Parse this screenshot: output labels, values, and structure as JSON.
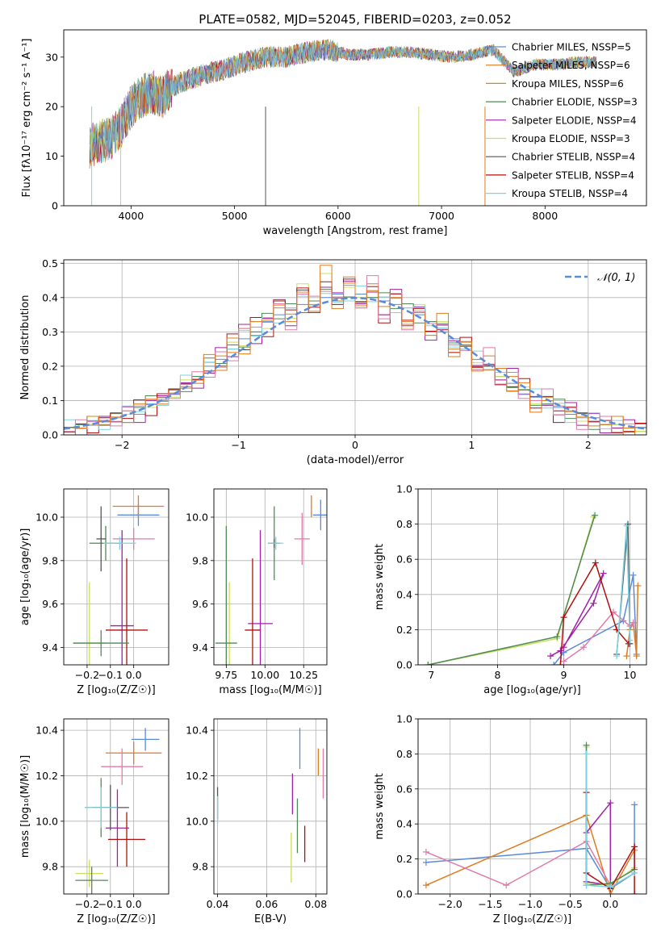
{
  "colors": {
    "chabrier_miles": "#5b8bd8",
    "salpeter_miles": "#e07b1e",
    "kroupa_miles": "#c98a2a",
    "chabrier_elodie": "#4f8a55",
    "salpeter_elodie": "#a020a8",
    "kroupa_elodie": "#c8e05a",
    "chabrier_stelib": "#555555",
    "salpeter_stelib": "#b01010",
    "kroupa_stelib": "#7fd3e0",
    "pink": "#e07aaa"
  },
  "chart_data": [
    {
      "id": "spectrum",
      "type": "line",
      "title": "PLATE=0582, MJD=52045, FIBERID=0203, z=0.052",
      "xlabel": "wavelength [Angstrom, rest frame]",
      "ylabel": "Flux [fλ10⁻¹⁷ erg cm⁻² s⁻¹ A⁻¹]",
      "xlim": [
        3350,
        8980
      ],
      "ylim": [
        0,
        35.5
      ],
      "xticks": [
        4000,
        5000,
        6000,
        7000,
        8000
      ],
      "yticks": [
        0,
        10,
        20,
        30
      ],
      "grid": false,
      "legend_position": "top-right",
      "legend": [
        "Chabrier MILES, N_SSP=5",
        "Salpeter MILES, N_SSP=6",
        "Kroupa MILES, N_SSP=6",
        "Chabrier ELODIE, N_SSP=3",
        "Salpeter ELODIE, N_SSP=4",
        "Kroupa ELODIE, N_SSP=3",
        "Chabrier STELIB, N_SSP=4",
        "Salpeter STELIB, N_SSP=4",
        "Kroupa STELIB, N_SSP=4"
      ],
      "x": [
        3600,
        3700,
        3800,
        3900,
        4000,
        4100,
        4200,
        4300,
        4400,
        4500,
        4700,
        4900,
        5100,
        5300,
        5500,
        5700,
        5900,
        6100,
        6300,
        6500,
        6700,
        6900,
        7100,
        7300,
        7500,
        7700,
        7900,
        8100,
        8300,
        8500
      ],
      "y": [
        12,
        13,
        13.5,
        16,
        20,
        22,
        23,
        22,
        24,
        25,
        26.5,
        27.5,
        29,
        30,
        30,
        31,
        31.5,
        30.5,
        30.5,
        31,
        31,
        30.5,
        30,
        30.5,
        31.5,
        27,
        28.5,
        28.5,
        29,
        29
      ]
    },
    {
      "id": "residuals",
      "type": "line",
      "xlabel": "(data-model)/error",
      "ylabel": "Normed distribution",
      "xlim": [
        -2.5,
        2.5
      ],
      "ylim": [
        0,
        0.51
      ],
      "xticks": [
        -2,
        -1,
        0,
        1,
        2
      ],
      "yticks": [
        0.0,
        0.1,
        0.2,
        0.3,
        0.4,
        0.5
      ],
      "grid": true,
      "legend_position": "top-right",
      "legend": [
        "𝒩(0, 1)"
      ],
      "bin_centers": [
        -2.45,
        -2.35,
        -2.25,
        -2.15,
        -2.05,
        -1.95,
        -1.85,
        -1.75,
        -1.65,
        -1.55,
        -1.45,
        -1.35,
        -1.25,
        -1.15,
        -1.05,
        -0.95,
        -0.85,
        -0.75,
        -0.65,
        -0.55,
        -0.45,
        -0.35,
        -0.25,
        -0.15,
        -0.05,
        0.05,
        0.15,
        0.25,
        0.35,
        0.45,
        0.55,
        0.65,
        0.75,
        0.85,
        0.95,
        1.05,
        1.15,
        1.25,
        1.35,
        1.45,
        1.55,
        1.65,
        1.75,
        1.85,
        1.95,
        2.05,
        2.15,
        2.25,
        2.35,
        2.45
      ],
      "series": [
        {
          "values": [
            0.02,
            0.03,
            0.03,
            0.04,
            0.05,
            0.06,
            0.08,
            0.09,
            0.11,
            0.12,
            0.15,
            0.17,
            0.2,
            0.22,
            0.25,
            0.28,
            0.3,
            0.33,
            0.35,
            0.37,
            0.38,
            0.39,
            0.4,
            0.41,
            0.39,
            0.41,
            0.4,
            0.39,
            0.38,
            0.37,
            0.35,
            0.33,
            0.3,
            0.28,
            0.25,
            0.22,
            0.2,
            0.17,
            0.15,
            0.12,
            0.11,
            0.09,
            0.08,
            0.06,
            0.05,
            0.04,
            0.03,
            0.03,
            0.02,
            0.02
          ]
        },
        {
          "values": [
            0.01,
            0.02,
            0.04,
            0.03,
            0.05,
            0.07,
            0.06,
            0.1,
            0.09,
            0.13,
            0.14,
            0.16,
            0.18,
            0.23,
            0.24,
            0.31,
            0.29,
            0.34,
            0.37,
            0.33,
            0.41,
            0.38,
            0.43,
            0.39,
            0.46,
            0.37,
            0.44,
            0.35,
            0.4,
            0.33,
            0.36,
            0.3,
            0.32,
            0.25,
            0.27,
            0.19,
            0.23,
            0.16,
            0.17,
            0.13,
            0.1,
            0.11,
            0.07,
            0.07,
            0.04,
            0.05,
            0.03,
            0.02,
            0.02,
            0.01
          ]
        },
        {
          "values": [
            0.02,
            0.02,
            0.03,
            0.05,
            0.04,
            0.06,
            0.09,
            0.08,
            0.12,
            0.11,
            0.16,
            0.15,
            0.21,
            0.2,
            0.27,
            0.26,
            0.33,
            0.31,
            0.39,
            0.34,
            0.44,
            0.36,
            0.47,
            0.38,
            0.43,
            0.4,
            0.42,
            0.35,
            0.41,
            0.31,
            0.38,
            0.29,
            0.33,
            0.24,
            0.26,
            0.21,
            0.19,
            0.17,
            0.14,
            0.14,
            0.09,
            0.1,
            0.06,
            0.08,
            0.04,
            0.05,
            0.03,
            0.03,
            0.01,
            0.01
          ]
        }
      ],
      "normal_curve": {
        "mean": 0,
        "std": 1
      }
    },
    {
      "id": "age_vs_z",
      "type": "scatter",
      "xlabel": "Z [log₁₀(Z/Z☉)]",
      "ylabel": "age  [log₁₀(age/yr)]",
      "xlim": [
        -0.3,
        0.15
      ],
      "ylim": [
        9.32,
        10.13
      ],
      "xticks": [
        -0.2,
        -0.1,
        0.0
      ],
      "yticks": [
        9.4,
        9.6,
        9.8,
        10.0
      ],
      "grid": true,
      "points": [
        {
          "x": 0.02,
          "y": 10.01,
          "xerr": 0.09,
          "yerr": 0.05,
          "c": "chabrier_miles"
        },
        {
          "x": 0.02,
          "y": 10.05,
          "xerr": 0.11,
          "yerr": 0.05,
          "c": "salpeter_miles"
        },
        {
          "x": 0.0,
          "y": 9.9,
          "xerr": 0.09,
          "yerr": 0.05,
          "c": "pink"
        },
        {
          "x": -0.12,
          "y": 9.88,
          "xerr": 0.07,
          "yerr": 0.08,
          "c": "chabrier_elodie"
        },
        {
          "x": -0.05,
          "y": 9.5,
          "xerr": 0.05,
          "yerr": 0.44,
          "c": "salpeter_elodie"
        },
        {
          "x": -0.19,
          "y": 9.42,
          "xerr": 0.07,
          "yerr": 0.28,
          "c": "kroupa_elodie"
        },
        {
          "x": -0.14,
          "y": 9.9,
          "xerr": 0.02,
          "yerr": 0.15,
          "c": "chabrier_stelib"
        },
        {
          "x": -0.03,
          "y": 9.48,
          "xerr": 0.09,
          "yerr": 0.33,
          "c": "salpeter_stelib"
        },
        {
          "x": -0.06,
          "y": 9.88,
          "xerr": 0.07,
          "yerr": 0.03,
          "c": "kroupa_stelib"
        },
        {
          "x": -0.14,
          "y": 9.42,
          "xerr": 0.12,
          "yerr": 0.06,
          "c": "chabrier_elodie"
        }
      ]
    },
    {
      "id": "age_vs_mass",
      "type": "scatter",
      "xlabel": "mass [log₁₀(M/M☉)]",
      "ylabel": "",
      "xlim": [
        9.67,
        10.4
      ],
      "ylim": [
        9.32,
        10.13
      ],
      "xticks": [
        9.75,
        10.0,
        10.25
      ],
      "yticks": [
        9.4,
        9.6,
        9.8,
        10.0
      ],
      "grid": true,
      "points": [
        {
          "x": 10.36,
          "y": 10.01,
          "xerr": 0.05,
          "yerr": 0.07,
          "c": "chabrier_miles"
        },
        {
          "x": 10.3,
          "y": 10.05,
          "xerr": 0.0,
          "yerr": 0.05,
          "c": "salpeter_miles"
        },
        {
          "x": 10.24,
          "y": 9.9,
          "xerr": 0.05,
          "yerr": 0.12,
          "c": "pink"
        },
        {
          "x": 10.06,
          "y": 9.88,
          "xerr": 0.04,
          "yerr": 0.17,
          "c": "chabrier_elodie"
        },
        {
          "x": 9.97,
          "y": 9.51,
          "xerr": 0.08,
          "yerr": 0.43,
          "c": "salpeter_elodie"
        },
        {
          "x": 9.77,
          "y": 9.42,
          "xerr": 0.0,
          "yerr": 0.28,
          "c": "kroupa_elodie"
        },
        {
          "x": 10.06,
          "y": 9.88,
          "xerr": 0.02,
          "yerr": 0.02,
          "c": "chabrier_stelib"
        },
        {
          "x": 9.92,
          "y": 9.48,
          "xerr": 0.05,
          "yerr": 0.33,
          "c": "salpeter_stelib"
        },
        {
          "x": 10.07,
          "y": 9.88,
          "xerr": 0.05,
          "yerr": 0.03,
          "c": "kroupa_stelib"
        },
        {
          "x": 9.75,
          "y": 9.42,
          "xerr": 0.07,
          "yerr": 0.54,
          "c": "chabrier_elodie"
        }
      ]
    },
    {
      "id": "mass_weight_vs_age",
      "type": "line",
      "xlabel": "age  [log₁₀(age/yr)]",
      "ylabel": "mass weight",
      "xlim": [
        6.8,
        10.25
      ],
      "ylim": [
        0,
        1.0
      ],
      "xticks": [
        7,
        8,
        9,
        10
      ],
      "yticks": [
        0.0,
        0.2,
        0.4,
        0.6,
        0.8,
        1.0
      ],
      "grid": true,
      "series": [
        {
          "c": "chabrier_miles",
          "x": [
            8.85,
            9.0,
            9.9,
            10.05,
            10.1
          ],
          "y": [
            0.0,
            0.07,
            0.25,
            0.51,
            0.06
          ]
        },
        {
          "c": "salpeter_miles",
          "x": [
            9.95,
            10.0,
            10.05,
            10.1,
            10.12
          ],
          "y": [
            0.05,
            0.2,
            0.24,
            0.05,
            0.45
          ]
        },
        {
          "c": "pink",
          "x": [
            9.0,
            9.3,
            9.75,
            10.0,
            10.05
          ],
          "y": [
            0.02,
            0.1,
            0.3,
            0.22,
            0.24
          ]
        },
        {
          "c": "salpeter_elodie",
          "x": [
            8.8,
            8.95,
            9.45,
            9.6,
            9.0
          ],
          "y": [
            0.05,
            0.08,
            0.35,
            0.52,
            0.1
          ]
        },
        {
          "c": "kroupa_elodie",
          "x": [
            6.95,
            8.9,
            9.45
          ],
          "y": [
            0.0,
            0.15,
            0.84
          ]
        },
        {
          "c": "chabrier_elodie",
          "x": [
            6.95,
            8.9,
            9.47
          ],
          "y": [
            0.0,
            0.16,
            0.85
          ]
        },
        {
          "c": "salpeter_stelib",
          "x": [
            8.95,
            9.0,
            9.48,
            9.8,
            9.98
          ],
          "y": [
            0.0,
            0.27,
            0.58,
            0.2,
            0.12
          ]
        },
        {
          "c": "chabrier_stelib",
          "x": [
            9.8,
            9.97,
            10.0
          ],
          "y": [
            0.06,
            0.8,
            0.12
          ]
        },
        {
          "c": "kroupa_stelib",
          "x": [
            9.8,
            9.95,
            10.0
          ],
          "y": [
            0.05,
            0.79,
            0.14
          ]
        }
      ]
    },
    {
      "id": "mass_vs_z",
      "type": "scatter",
      "xlabel": "Z [log₁₀(Z/Z☉)]",
      "ylabel": "mass [log₁₀(M/M☉)]",
      "xlim": [
        -0.3,
        0.15
      ],
      "ylim": [
        9.68,
        10.45
      ],
      "xticks": [
        -0.2,
        -0.1,
        0.0
      ],
      "yticks": [
        9.8,
        10.0,
        10.2,
        10.4
      ],
      "grid": true,
      "points": [
        {
          "x": 0.05,
          "y": 10.36,
          "xerr": 0.06,
          "yerr": 0.05,
          "c": "chabrier_miles"
        },
        {
          "x": 0.0,
          "y": 10.3,
          "xerr": 0.12,
          "yerr": 0.05,
          "c": "salpeter_miles"
        },
        {
          "x": -0.05,
          "y": 10.24,
          "xerr": 0.09,
          "yerr": 0.08,
          "c": "pink"
        },
        {
          "x": -0.14,
          "y": 10.06,
          "xerr": 0.07,
          "yerr": 0.13,
          "c": "chabrier_elodie"
        },
        {
          "x": -0.07,
          "y": 9.97,
          "xerr": 0.05,
          "yerr": 0.17,
          "c": "salpeter_elodie"
        },
        {
          "x": -0.19,
          "y": 9.77,
          "xerr": 0.06,
          "yerr": 0.06,
          "c": "kroupa_elodie"
        },
        {
          "x": -0.1,
          "y": 10.06,
          "xerr": 0.08,
          "yerr": 0.1,
          "c": "chabrier_stelib"
        },
        {
          "x": -0.03,
          "y": 9.92,
          "xerr": 0.08,
          "yerr": 0.12,
          "c": "salpeter_stelib"
        },
        {
          "x": -0.14,
          "y": 10.06,
          "xerr": 0.07,
          "yerr": 0.09,
          "c": "kroupa_stelib"
        },
        {
          "x": -0.18,
          "y": 9.74,
          "xerr": 0.07,
          "yerr": 0.06,
          "c": "chabrier_elodie"
        }
      ]
    },
    {
      "id": "mass_vs_ebv",
      "type": "scatter",
      "xlabel": "E(B-V)",
      "ylabel": "",
      "xlim": [
        0.0385,
        0.0845
      ],
      "ylim": [
        9.68,
        10.45
      ],
      "xticks": [
        0.04,
        0.06,
        0.08
      ],
      "yticks": [
        9.8,
        10.0,
        10.2,
        10.4
      ],
      "grid": true,
      "points": [
        {
          "x": 0.0735,
          "y": 10.32,
          "yerr": 0.09,
          "c": "chabrier_miles"
        },
        {
          "x": 0.081,
          "y": 10.26,
          "yerr": 0.06,
          "c": "salpeter_miles"
        },
        {
          "x": 0.083,
          "y": 10.21,
          "yerr": 0.11,
          "c": "pink"
        },
        {
          "x": 0.0725,
          "y": 9.98,
          "yerr": 0.12,
          "c": "chabrier_elodie"
        },
        {
          "x": 0.0705,
          "y": 10.12,
          "yerr": 0.09,
          "c": "salpeter_elodie"
        },
        {
          "x": 0.07,
          "y": 9.84,
          "yerr": 0.11,
          "c": "kroupa_elodie"
        },
        {
          "x": 0.04,
          "y": 10.08,
          "yerr": 0.07,
          "c": "chabrier_stelib"
        },
        {
          "x": 0.0755,
          "y": 9.9,
          "yerr": 0.08,
          "c": "salpeter_stelib"
        },
        {
          "x": 0.04,
          "y": 10.05,
          "yerr": 0.06,
          "c": "kroupa_stelib"
        }
      ]
    },
    {
      "id": "mass_weight_vs_z",
      "type": "line",
      "xlabel": "Z [log₁₀(Z/Z☉)]",
      "ylabel": "mass weight",
      "xlim": [
        -2.4,
        0.45
      ],
      "ylim": [
        0,
        1.0
      ],
      "xticks": [
        -2.0,
        -1.5,
        -1.0,
        -0.5,
        0.0
      ],
      "yticks": [
        0.0,
        0.2,
        0.4,
        0.6,
        0.8,
        1.0
      ],
      "grid": true,
      "series": [
        {
          "c": "chabrier_miles",
          "x": [
            -2.3,
            -0.3,
            0.0,
            0.3,
            0.3
          ],
          "y": [
            0.18,
            0.26,
            0.03,
            0.12,
            0.51
          ]
        },
        {
          "c": "salpeter_miles",
          "x": [
            -2.3,
            -0.3,
            0.0,
            0.3
          ],
          "y": [
            0.05,
            0.45,
            0.0,
            0.25
          ]
        },
        {
          "c": "pink",
          "x": [
            -2.3,
            -1.3,
            -0.3,
            0.0
          ],
          "y": [
            0.24,
            0.05,
            0.3,
            0.05
          ]
        },
        {
          "c": "salpeter_elodie",
          "x": [
            -0.3,
            0.0,
            0.0,
            -0.3
          ],
          "y": [
            0.35,
            0.52,
            0.05,
            0.07
          ]
        },
        {
          "c": "kroupa_elodie",
          "x": [
            -0.3,
            -0.3,
            0.0,
            0.3
          ],
          "y": [
            0.84,
            0.06,
            0.05,
            0.15
          ]
        },
        {
          "c": "chabrier_elodie",
          "x": [
            -0.3,
            -0.3,
            0.0,
            0.3
          ],
          "y": [
            0.85,
            0.05,
            0.06,
            0.14
          ]
        },
        {
          "c": "salpeter_stelib",
          "x": [
            -0.3,
            -0.3,
            0.0,
            0.3,
            0.3
          ],
          "y": [
            0.58,
            0.12,
            0.03,
            0.27,
            0.0
          ]
        },
        {
          "c": "kroupa_stelib",
          "x": [
            -0.3,
            -0.3,
            0.0,
            0.3
          ],
          "y": [
            0.8,
            0.05,
            0.04,
            0.12
          ]
        }
      ]
    }
  ]
}
